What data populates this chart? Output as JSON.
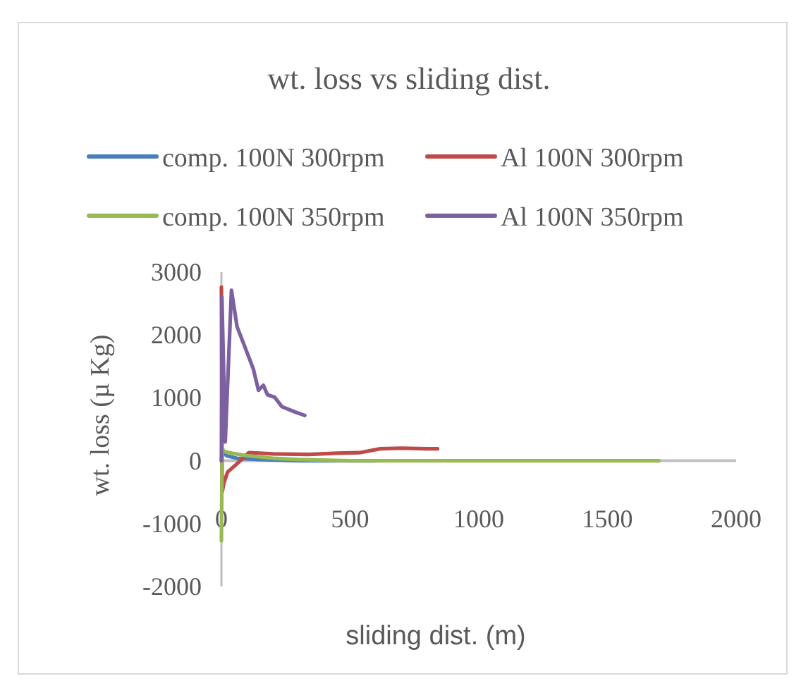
{
  "chart_data": {
    "type": "line",
    "title": "wt. loss vs sliding dist.",
    "xlabel": "sliding dist. (m)",
    "ylabel": "wt. loss (µ Kg)",
    "xlim": [
      0,
      2000
    ],
    "xticks": [
      0,
      500,
      1000,
      1500,
      2000
    ],
    "ylim": [
      -2000,
      3000
    ],
    "yticks": [
      -2000,
      -1000,
      0,
      1000,
      2000,
      3000
    ],
    "legend": "top",
    "grid": false,
    "series": [
      {
        "name": "comp. 100N 300rpm",
        "color": "#4a7ebb",
        "x": [
          0,
          3,
          20,
          60,
          150,
          300,
          600
        ],
        "values": [
          0,
          150,
          80,
          40,
          20,
          0,
          0
        ]
      },
      {
        "name": "Al 100N 300rpm",
        "color": "#be4b48",
        "x": [
          0,
          3,
          10,
          24,
          63,
          107,
          200,
          339,
          450,
          540,
          617,
          700,
          800,
          840
        ],
        "values": [
          2760,
          -500,
          -350,
          -180,
          -40,
          130,
          110,
          100,
          120,
          130,
          190,
          200,
          190,
          190
        ]
      },
      {
        "name": "comp. 100N 350rpm",
        "color": "#98b954",
        "x": [
          0,
          3,
          10,
          40,
          100,
          200,
          300,
          500,
          1000,
          1500,
          1700
        ],
        "values": [
          -1270,
          200,
          150,
          120,
          80,
          40,
          20,
          0,
          0,
          0,
          0
        ]
      },
      {
        "name": "Al 100N 350rpm",
        "color": "#7d60a0",
        "x": [
          0,
          2,
          15,
          39,
          61,
          96,
          124,
          144,
          163,
          179,
          207,
          235,
          283,
          324
        ],
        "values": [
          0,
          2600,
          300,
          2710,
          2130,
          1760,
          1460,
          1120,
          1200,
          1050,
          1010,
          860,
          780,
          720
        ]
      }
    ]
  }
}
